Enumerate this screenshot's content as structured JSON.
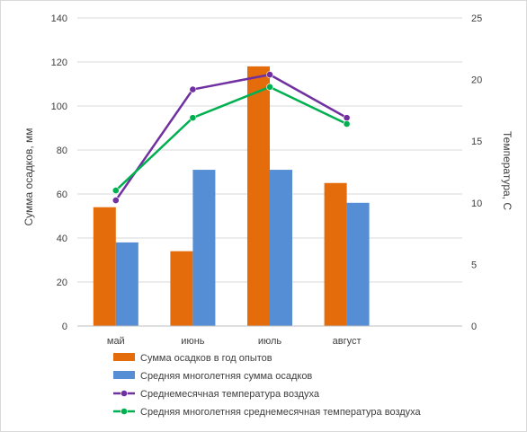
{
  "chart_data": {
    "type": "bar",
    "categories": [
      "май",
      "июнь",
      "июль",
      "август"
    ],
    "series": [
      {
        "name": "Сумма осадков в год опытов",
        "kind": "bar",
        "axis": "left",
        "values": [
          54,
          34,
          118,
          65
        ]
      },
      {
        "name": "Средняя многолетняя сумма осадков",
        "kind": "bar",
        "axis": "left",
        "values": [
          38,
          71,
          71,
          56
        ]
      },
      {
        "name": "Среднемесячная температура воздуха",
        "kind": "line",
        "axis": "right",
        "values": [
          10.2,
          19.2,
          20.4,
          16.9
        ]
      },
      {
        "name": "Средняя многолетняя среднемесячная температура воздуха",
        "kind": "line",
        "axis": "right",
        "values": [
          11.0,
          16.9,
          19.4,
          16.4
        ]
      }
    ],
    "ylabel": "Сумма осадков, мм",
    "y2label": "Температура, С",
    "ylim": [
      0,
      140
    ],
    "y2lim": [
      0,
      25
    ],
    "yticks": [
      0,
      20,
      40,
      60,
      80,
      100,
      120,
      140
    ],
    "y2ticks": [
      0,
      5,
      10,
      15,
      20,
      25
    ],
    "colors": [
      "#e46c0a",
      "#558ed5",
      "#7030a0",
      "#00b050"
    ],
    "grid": true,
    "legend": "bottom"
  }
}
